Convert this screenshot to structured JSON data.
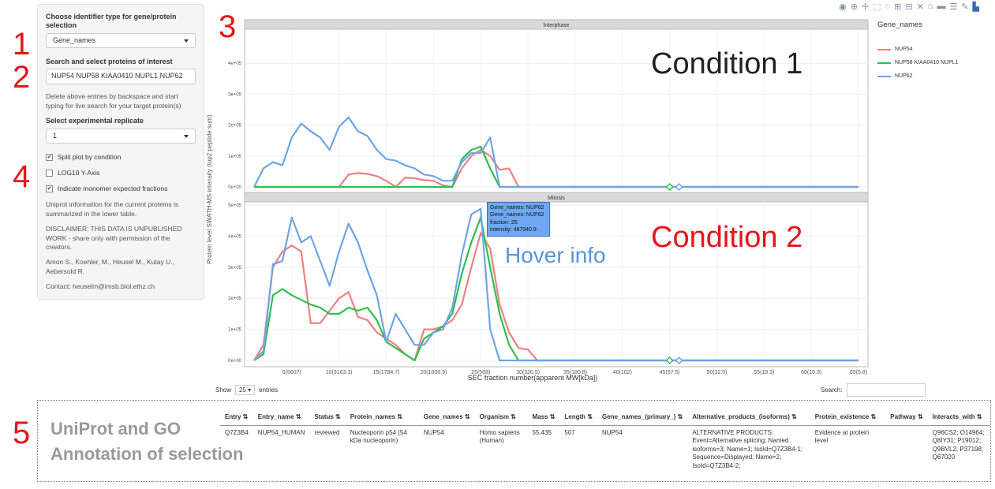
{
  "annotations": {
    "n1": "1",
    "n2": "2",
    "n3": "3",
    "n4": "4",
    "n5": "5"
  },
  "sidebar": {
    "id_type_label": "Choose identifier type for gene/protein selection",
    "id_type_value": "Gene_names",
    "search_label": "Search and select proteins of interest",
    "search_value": "NUP54  NUP58 KIAA0410 NUPL1  NUP62",
    "help_text": "Delete above entries by backspace and start typing for live search for your target protein(s)",
    "replicate_label": "Select experimental replicate",
    "replicate_value": "1",
    "checkboxes": [
      {
        "label": "Split plot by condition",
        "checked": true
      },
      {
        "label": "LOG10 Y-Axis",
        "checked": false
      },
      {
        "label": "Indicate monomer expected fractions",
        "checked": true
      }
    ],
    "uniprot_text": "Uniprot information for the current proteins is summarized in the lower table.",
    "disclaimer": "DISCLAIMER: THIS DATA IS UNPUBLISHED WORK - share only with permission of the creators.",
    "authors": "Amon S., Koehler, M., Heusel M., Kutay U., Aebersold R.",
    "contact": "Contact: heuselm@imsb.biol.ethz.ch"
  },
  "chart_data": {
    "type": "line",
    "panels": [
      "Interphase",
      "Mitosis"
    ],
    "ylabel": "Protein level SWATH-MS intensity (top2 peptide sum)",
    "xlabel": "SEC fraction number(apparent MW[kDa])",
    "x_ticks": [
      "5(5607)",
      "10(3163.3)",
      "15(1784.7)",
      "20(1006.9)",
      "25(568)",
      "30(320.5)",
      "35(180.8)",
      "40(102)",
      "45(57.5)",
      "50(32.5)",
      "55(18.3)",
      "60(10.3)",
      "65(5.8)"
    ],
    "tick_fractions": [
      5,
      10,
      15,
      20,
      25,
      30,
      35,
      40,
      45,
      50,
      55,
      60,
      65
    ],
    "x_range": [
      0,
      66
    ],
    "ylim_interphase": [
      0,
      500000
    ],
    "ylim_mitosis": [
      0,
      500000
    ],
    "y_ticks_interphase": [
      "0e+00",
      "1e+05",
      "2e+05",
      "3e+05",
      "4e+05"
    ],
    "y_ticks_mitosis": [
      "0e+00",
      "1e+05",
      "2e+05",
      "3e+05",
      "4e+05",
      "5e+05"
    ],
    "legend_title": "Gene_names",
    "series": [
      {
        "name": "NUP54",
        "color": "#f08080",
        "interphase": [
          [
            1,
            0
          ],
          [
            2,
            0
          ],
          [
            3,
            0
          ],
          [
            4,
            0
          ],
          [
            5,
            0
          ],
          [
            6,
            0
          ],
          [
            7,
            0
          ],
          [
            8,
            0
          ],
          [
            9,
            0
          ],
          [
            10,
            0
          ],
          [
            11,
            40000
          ],
          [
            12,
            45000
          ],
          [
            13,
            42000
          ],
          [
            14,
            35000
          ],
          [
            15,
            20000
          ],
          [
            16,
            0
          ],
          [
            17,
            30000
          ],
          [
            18,
            28000
          ],
          [
            19,
            22000
          ],
          [
            20,
            20000
          ],
          [
            21,
            5000
          ],
          [
            22,
            0
          ],
          [
            23,
            60000
          ],
          [
            24,
            100000
          ],
          [
            25,
            120000
          ],
          [
            26,
            100000
          ],
          [
            27,
            55000
          ],
          [
            28,
            60000
          ],
          [
            29,
            0
          ],
          [
            30,
            0
          ],
          [
            31,
            0
          ],
          [
            35,
            0
          ],
          [
            40,
            0
          ],
          [
            45,
            0
          ],
          [
            50,
            0
          ],
          [
            55,
            0
          ],
          [
            60,
            0
          ],
          [
            65,
            0
          ]
        ],
        "mitosis": [
          [
            1,
            0
          ],
          [
            2,
            50000
          ],
          [
            3,
            300000
          ],
          [
            4,
            350000
          ],
          [
            5,
            370000
          ],
          [
            6,
            350000
          ],
          [
            7,
            120000
          ],
          [
            8,
            120000
          ],
          [
            9,
            160000
          ],
          [
            10,
            200000
          ],
          [
            11,
            220000
          ],
          [
            12,
            140000
          ],
          [
            13,
            130000
          ],
          [
            14,
            90000
          ],
          [
            15,
            70000
          ],
          [
            16,
            50000
          ],
          [
            17,
            20000
          ],
          [
            18,
            0
          ],
          [
            19,
            100000
          ],
          [
            20,
            100000
          ],
          [
            21,
            110000
          ],
          [
            22,
            130000
          ],
          [
            23,
            180000
          ],
          [
            24,
            300000
          ],
          [
            25,
            410000
          ],
          [
            26,
            360000
          ],
          [
            27,
            180000
          ],
          [
            28,
            90000
          ],
          [
            29,
            40000
          ],
          [
            30,
            35000
          ],
          [
            31,
            0
          ],
          [
            35,
            0
          ],
          [
            40,
            0
          ],
          [
            45,
            0
          ],
          [
            50,
            0
          ],
          [
            55,
            0
          ],
          [
            60,
            0
          ],
          [
            65,
            0
          ]
        ]
      },
      {
        "name": "NUP58 KIAA0410 NUPL1",
        "color": "#2fbf4f",
        "interphase": [
          [
            1,
            0
          ],
          [
            2,
            0
          ],
          [
            3,
            0
          ],
          [
            4,
            0
          ],
          [
            5,
            0
          ],
          [
            6,
            0
          ],
          [
            7,
            0
          ],
          [
            8,
            0
          ],
          [
            9,
            0
          ],
          [
            10,
            0
          ],
          [
            11,
            0
          ],
          [
            12,
            0
          ],
          [
            13,
            0
          ],
          [
            14,
            0
          ],
          [
            15,
            0
          ],
          [
            16,
            0
          ],
          [
            17,
            0
          ],
          [
            18,
            0
          ],
          [
            19,
            0
          ],
          [
            20,
            0
          ],
          [
            21,
            0
          ],
          [
            22,
            0
          ],
          [
            23,
            90000
          ],
          [
            24,
            120000
          ],
          [
            25,
            130000
          ],
          [
            26,
            60000
          ],
          [
            27,
            0
          ],
          [
            28,
            0
          ],
          [
            30,
            0
          ],
          [
            35,
            0
          ],
          [
            40,
            0
          ],
          [
            45,
            0
          ],
          [
            50,
            0
          ],
          [
            55,
            0
          ],
          [
            60,
            0
          ],
          [
            65,
            0
          ]
        ],
        "mitosis": [
          [
            1,
            0
          ],
          [
            2,
            20000
          ],
          [
            3,
            210000
          ],
          [
            4,
            230000
          ],
          [
            5,
            210000
          ],
          [
            6,
            195000
          ],
          [
            7,
            180000
          ],
          [
            8,
            170000
          ],
          [
            9,
            150000
          ],
          [
            10,
            150000
          ],
          [
            11,
            170000
          ],
          [
            12,
            160000
          ],
          [
            13,
            170000
          ],
          [
            14,
            130000
          ],
          [
            15,
            60000
          ],
          [
            16,
            40000
          ],
          [
            17,
            20000
          ],
          [
            18,
            0
          ],
          [
            19,
            70000
          ],
          [
            20,
            90000
          ],
          [
            21,
            110000
          ],
          [
            22,
            150000
          ],
          [
            23,
            280000
          ],
          [
            24,
            380000
          ],
          [
            25,
            460000
          ],
          [
            26,
            300000
          ],
          [
            27,
            150000
          ],
          [
            28,
            50000
          ],
          [
            29,
            0
          ],
          [
            30,
            0
          ],
          [
            35,
            0
          ],
          [
            40,
            0
          ],
          [
            45,
            0
          ],
          [
            50,
            0
          ],
          [
            55,
            0
          ],
          [
            60,
            0
          ],
          [
            65,
            0
          ]
        ]
      },
      {
        "name": "NUP62",
        "color": "#6fa4e8",
        "interphase": [
          [
            1,
            0
          ],
          [
            2,
            60000
          ],
          [
            3,
            80000
          ],
          [
            4,
            70000
          ],
          [
            5,
            160000
          ],
          [
            6,
            205000
          ],
          [
            7,
            180000
          ],
          [
            8,
            160000
          ],
          [
            9,
            120000
          ],
          [
            10,
            195000
          ],
          [
            11,
            225000
          ],
          [
            12,
            180000
          ],
          [
            13,
            165000
          ],
          [
            14,
            120000
          ],
          [
            15,
            90000
          ],
          [
            16,
            85000
          ],
          [
            17,
            70000
          ],
          [
            18,
            60000
          ],
          [
            19,
            40000
          ],
          [
            20,
            35000
          ],
          [
            21,
            20000
          ],
          [
            22,
            20000
          ],
          [
            23,
            80000
          ],
          [
            24,
            110000
          ],
          [
            25,
            110000
          ],
          [
            26,
            160000
          ],
          [
            27,
            0
          ],
          [
            28,
            0
          ],
          [
            30,
            0
          ],
          [
            35,
            0
          ],
          [
            40,
            0
          ],
          [
            45,
            0
          ],
          [
            50,
            0
          ],
          [
            55,
            0
          ],
          [
            60,
            0
          ],
          [
            65,
            0
          ]
        ],
        "mitosis": [
          [
            1,
            0
          ],
          [
            2,
            30000
          ],
          [
            3,
            310000
          ],
          [
            4,
            320000
          ],
          [
            5,
            460000
          ],
          [
            6,
            380000
          ],
          [
            7,
            400000
          ],
          [
            8,
            320000
          ],
          [
            9,
            240000
          ],
          [
            10,
            350000
          ],
          [
            11,
            440000
          ],
          [
            12,
            380000
          ],
          [
            13,
            290000
          ],
          [
            14,
            210000
          ],
          [
            15,
            60000
          ],
          [
            16,
            150000
          ],
          [
            17,
            100000
          ],
          [
            18,
            50000
          ],
          [
            19,
            50000
          ],
          [
            20,
            90000
          ],
          [
            21,
            100000
          ],
          [
            22,
            170000
          ],
          [
            23,
            340000
          ],
          [
            24,
            470000
          ],
          [
            25,
            487940
          ],
          [
            26,
            100000
          ],
          [
            27,
            0
          ],
          [
            28,
            0
          ],
          [
            30,
            0
          ],
          [
            35,
            0
          ],
          [
            40,
            0
          ],
          [
            45,
            0
          ],
          [
            50,
            0
          ],
          [
            55,
            0
          ],
          [
            60,
            0
          ],
          [
            65,
            0
          ]
        ]
      }
    ],
    "monomer_markers": [
      45,
      46
    ]
  },
  "overlay": {
    "condition1": "Condition 1",
    "condition2": "Condition 2",
    "hover_info": "Hover info"
  },
  "hover": {
    "line1": "Gene_names: NUP62",
    "line2": "Gene_names: NUP62",
    "line3": "fraction: 25",
    "line4": "intensity: 487940.9"
  },
  "table_controls": {
    "show": "Show",
    "entries_value": "25",
    "entries": "entries",
    "search": "Search:"
  },
  "table_annotation": {
    "line1": "UniProt and GO",
    "line2": "Annotation of selection"
  },
  "table": {
    "columns": [
      "Entry",
      "Entry_name",
      "Status",
      "Protein_names",
      "Gene_names",
      "Organism",
      "Mass",
      "Length",
      "Gene_names_(primary_)",
      "Alternative_products_(isoforms)",
      "Protein_existence",
      "Pathway",
      "Interacts_with"
    ],
    "row": [
      "Q7Z3B4",
      "NUP54_HUMAN",
      "reviewed",
      "Nucleoporin p54 (54 kDa nucleoporin)",
      "NUP54",
      "Homo sapiens (Human)",
      "55.435",
      "507",
      "NUP54",
      "ALTERNATIVE PRODUCTS: Event=Alternative splicing; Named isoforms=3; Name=1; IsoId=Q7Z3B4-1; Sequence=Displayed; Name=2; IsoId=Q7Z3B4-2;",
      "Evidence at protein level",
      "",
      "Q96CS2; O14964; Q8IY31; P19012; Q9BVL2; P37198; Q67020"
    ]
  },
  "colors": {
    "accent": "#e8141a",
    "hover_box": "#6fa8f2",
    "panel_header": "#d9d9d9"
  }
}
